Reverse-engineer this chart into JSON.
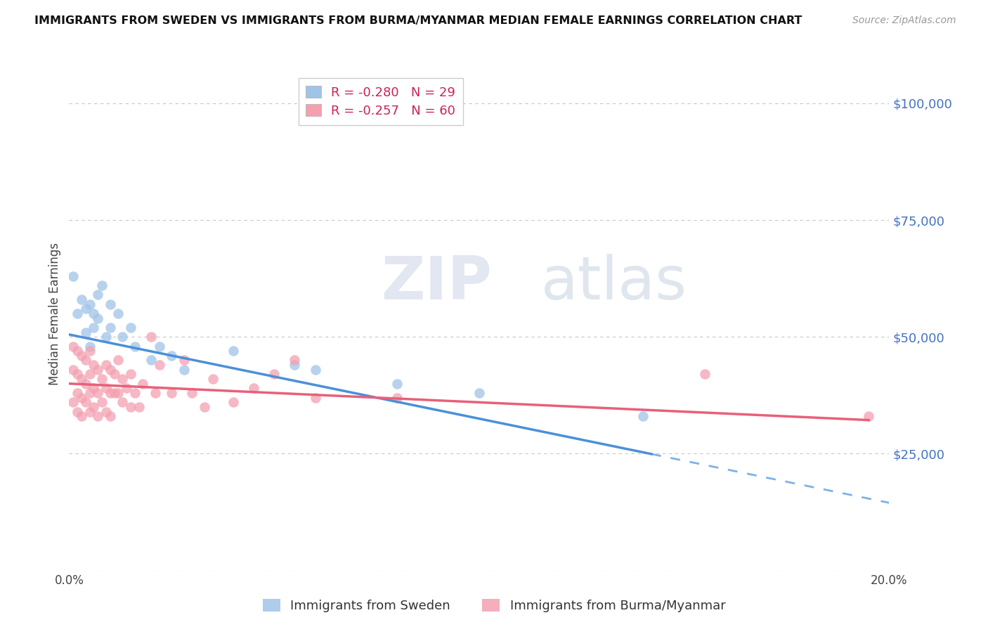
{
  "title": "IMMIGRANTS FROM SWEDEN VS IMMIGRANTS FROM BURMA/MYANMAR MEDIAN FEMALE EARNINGS CORRELATION CHART",
  "source": "Source: ZipAtlas.com",
  "ylabel": "Median Female Earnings",
  "xlim": [
    0,
    0.2
  ],
  "ylim": [
    0,
    110000
  ],
  "yticks": [
    0,
    25000,
    50000,
    75000,
    100000
  ],
  "ytick_labels": [
    "",
    "$25,000",
    "$50,000",
    "$75,000",
    "$100,000"
  ],
  "xticks": [
    0.0,
    0.05,
    0.1,
    0.15,
    0.2
  ],
  "xtick_labels": [
    "0.0%",
    "",
    "",
    "",
    "20.0%"
  ],
  "grid_color": "#c8c8c8",
  "background_color": "#ffffff",
  "sweden_color": "#a0c4e8",
  "burma_color": "#f4a0b0",
  "sweden_line_color": "#4a90d9",
  "burma_line_color": "#e8607a",
  "sweden_R": "-0.280",
  "sweden_N": "29",
  "burma_R": "-0.257",
  "burma_N": "60",
  "legend_label_sweden": "Immigrants from Sweden",
  "legend_label_burma": "Immigrants from Burma/Myanmar",
  "watermark_zip": "ZIP",
  "watermark_atlas": "atlas",
  "sweden_line_intercept": 50500,
  "sweden_line_slope": -180000,
  "sweden_line_end": 0.142,
  "burma_line_intercept": 40000,
  "burma_line_slope": -40000,
  "burma_line_end": 0.195
}
